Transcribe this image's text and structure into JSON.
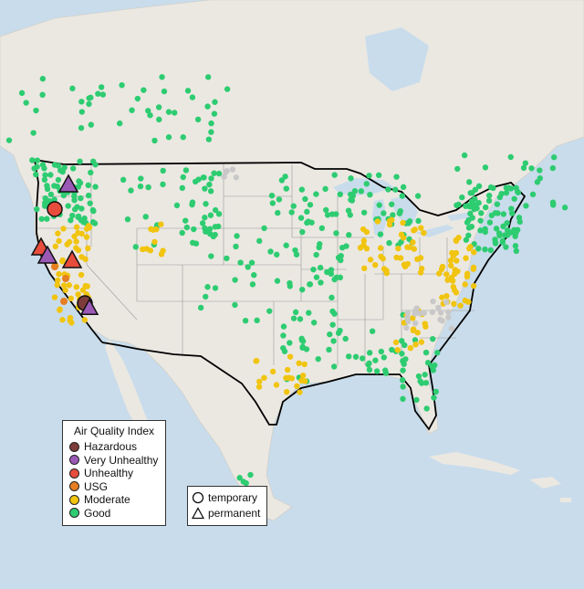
{
  "legend": {
    "title": "Air Quality Index",
    "categories": [
      {
        "label": "Hazardous",
        "color": "#7e3b3b"
      },
      {
        "label": "Very Unhealthy",
        "color": "#9b59b6"
      },
      {
        "label": "Unhealthy",
        "color": "#e74c3c"
      },
      {
        "label": "USG",
        "color": "#e67e22"
      },
      {
        "label": "Moderate",
        "color": "#f1c40f"
      },
      {
        "label": "Good",
        "color": "#2ecc71"
      }
    ]
  },
  "type_legend": {
    "temporary": "temporary",
    "permanent": "permanent"
  },
  "colors": {
    "water": "#c9dceb",
    "land": "#ebe8e2",
    "border": "#000000",
    "no_data": "#c8c8c8"
  }
}
